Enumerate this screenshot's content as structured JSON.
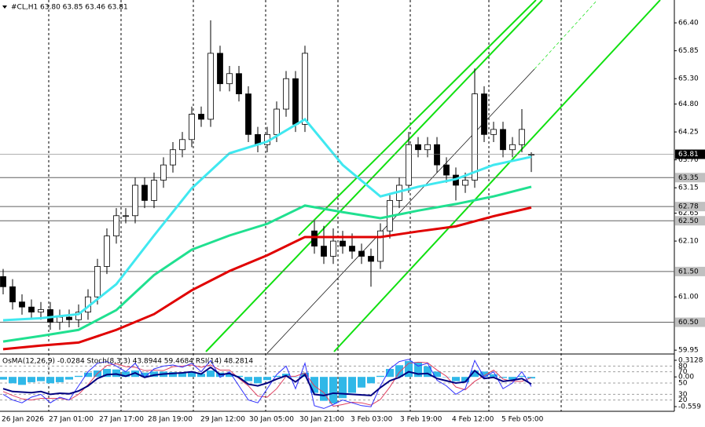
{
  "chart_data": [
    {
      "type": "candlestick",
      "title": "#CL,H1  63.80 63.85 63.46 63.81",
      "ylim": [
        59.89,
        66.85
      ],
      "yticks": [
        {
          "value": 66.4,
          "label": "66.40"
        },
        65.85,
        {
          "value": 65.3,
          "label": "65.30"
        },
        {
          "value": 64.8,
          "label": "64.80"
        },
        64.25,
        {
          "value": 63.7,
          "label": "63.70"
        },
        63.15,
        62.65,
        {
          "value": 62.1,
          "label": "62.10"
        },
        {
          "value": 61.0,
          "label": "61.00"
        },
        59.95
      ],
      "levels": [
        63.35,
        62.78,
        {
          "value": 62.5,
          "label": "62.50"
        },
        {
          "value": 61.5,
          "label": "61.50"
        },
        {
          "value": 60.5,
          "label": "60.50"
        }
      ],
      "last": 63.81,
      "x_labels": [
        "26 Jan 2026",
        "27 Jan 01:00",
        "27 Jan 17:00",
        "28 Jan 19:00",
        "29 Jan 12:00",
        "30 Jan 05:00",
        "30 Jan 21:00",
        "3 Feb 03:00",
        "3 Feb 19:00",
        "4 Feb 12:00",
        "5 Feb 05:00"
      ],
      "candles": [
        [
          61.4,
          61.55,
          61.05,
          61.2
        ],
        [
          61.2,
          61.35,
          60.75,
          60.9
        ],
        [
          60.9,
          61.05,
          60.65,
          60.8
        ],
        [
          60.8,
          60.95,
          60.55,
          60.7
        ],
        [
          60.7,
          60.9,
          60.55,
          60.75
        ],
        [
          60.75,
          60.9,
          60.35,
          60.5
        ],
        [
          60.5,
          60.75,
          60.35,
          60.6
        ],
        [
          60.6,
          60.75,
          60.4,
          60.55
        ],
        [
          60.55,
          60.85,
          60.4,
          60.7
        ],
        [
          60.7,
          61.15,
          60.55,
          61.0
        ],
        [
          61.0,
          61.75,
          60.85,
          61.6
        ],
        [
          61.6,
          62.35,
          61.45,
          62.2
        ],
        [
          62.2,
          62.75,
          62.05,
          62.6
        ],
        [
          62.6,
          62.75,
          62.45,
          62.6
        ],
        [
          62.6,
          63.35,
          62.45,
          63.2
        ],
        [
          63.2,
          63.35,
          62.75,
          62.9
        ],
        [
          62.9,
          63.45,
          62.75,
          63.3
        ],
        [
          63.3,
          63.75,
          63.15,
          63.6
        ],
        [
          63.6,
          64.05,
          63.45,
          63.9
        ],
        [
          63.9,
          64.25,
          63.75,
          64.1
        ],
        [
          64.1,
          64.75,
          63.95,
          64.6
        ],
        [
          64.6,
          64.75,
          64.35,
          64.5
        ],
        [
          64.5,
          66.45,
          64.35,
          65.8
        ],
        [
          65.8,
          65.95,
          65.05,
          65.2
        ],
        [
          65.2,
          65.55,
          65.05,
          65.4
        ],
        [
          65.4,
          65.55,
          64.85,
          65.0
        ],
        [
          65.0,
          65.15,
          64.05,
          64.2
        ],
        [
          64.2,
          64.35,
          63.85,
          64.0
        ],
        [
          64.0,
          64.35,
          63.85,
          64.2
        ],
        [
          64.2,
          64.85,
          64.05,
          64.7
        ],
        [
          64.7,
          65.45,
          64.55,
          65.3
        ],
        [
          65.3,
          65.45,
          64.25,
          64.4
        ],
        [
          64.4,
          65.95,
          64.25,
          65.8
        ],
        [
          62.3,
          62.5,
          61.85,
          62.0
        ],
        [
          62.0,
          62.4,
          61.65,
          61.8
        ],
        [
          61.8,
          62.35,
          61.65,
          62.1
        ],
        [
          62.1,
          62.3,
          61.85,
          62.0
        ],
        [
          62.0,
          62.25,
          61.75,
          61.9
        ],
        [
          61.9,
          62.05,
          61.65,
          61.8
        ],
        [
          61.8,
          61.95,
          61.2,
          61.7
        ],
        [
          61.7,
          62.45,
          61.55,
          62.3
        ],
        [
          62.3,
          63.05,
          62.15,
          62.9
        ],
        [
          62.9,
          63.35,
          62.75,
          63.2
        ],
        [
          63.2,
          64.25,
          63.05,
          64.0
        ],
        [
          64.0,
          64.15,
          63.75,
          63.9
        ],
        [
          63.9,
          64.15,
          63.75,
          64.0
        ],
        [
          64.0,
          64.15,
          63.45,
          63.6
        ],
        [
          63.6,
          63.75,
          63.25,
          63.4
        ],
        [
          63.4,
          63.55,
          62.9,
          63.2
        ],
        [
          63.2,
          63.45,
          63.05,
          63.3
        ],
        [
          63.3,
          65.5,
          63.15,
          65.0
        ],
        [
          65.0,
          65.15,
          64.05,
          64.2
        ],
        [
          64.2,
          64.45,
          64.05,
          64.3
        ],
        [
          64.3,
          64.45,
          63.75,
          63.9
        ],
        [
          63.9,
          64.15,
          63.75,
          64.0
        ],
        [
          64.0,
          64.7,
          63.85,
          64.3
        ],
        [
          63.8,
          63.85,
          63.46,
          63.81
        ]
      ],
      "series": [
        {
          "color": "#40e8f0",
          "x": [
            0,
            4,
            8,
            12,
            16,
            20,
            24,
            28,
            32,
            36,
            40,
            44,
            48,
            52,
            56
          ],
          "values": [
            60.54,
            60.58,
            60.66,
            61.25,
            62.21,
            63.14,
            63.83,
            64.06,
            64.5,
            63.6,
            62.98,
            63.17,
            63.32,
            63.6,
            63.76
          ]
        },
        {
          "color": "#20e090",
          "x": [
            0,
            4,
            8,
            12,
            16,
            20,
            24,
            28,
            32,
            36,
            40,
            44,
            48,
            52,
            56
          ],
          "values": [
            60.12,
            60.23,
            60.35,
            60.74,
            61.43,
            61.93,
            62.21,
            62.44,
            62.8,
            62.67,
            62.55,
            62.7,
            62.83,
            62.98,
            63.17
          ]
        },
        {
          "color": "#e00000",
          "x": [
            0,
            4,
            8,
            12,
            16,
            20,
            24,
            28,
            32,
            36,
            40,
            44,
            48,
            52,
            56
          ],
          "values": [
            59.97,
            60.04,
            60.1,
            60.35,
            60.66,
            61.13,
            61.51,
            61.82,
            62.18,
            62.18,
            62.18,
            62.29,
            62.39,
            62.59,
            62.76
          ]
        }
      ]
    },
    {
      "type": "oscillator",
      "title": "OsMA(12,26,9) -0.0284  Stoch(8,3,3) 43.8944 59.4684  RSI(14) 48.2814",
      "ylim": [
        -0.647,
        0.416
      ],
      "yticks": [
        0.3128,
        {
          "value": 0,
          "label": "0.00"
        },
        -0.559
      ],
      "y2lim": [
        0,
        100
      ],
      "y2ticks": [
        80,
        70,
        50,
        30,
        20
      ],
      "osma": {
        "color": "#30b8e8",
        "values": [
          -0.05,
          -0.12,
          -0.15,
          -0.1,
          -0.08,
          -0.12,
          -0.1,
          -0.05,
          0.02,
          0.08,
          0.12,
          0.15,
          0.14,
          0.1,
          0.12,
          0.08,
          0.1,
          0.1,
          0.09,
          0.08,
          0.1,
          0.06,
          0.12,
          0.08,
          0.05,
          0.02,
          -0.08,
          -0.12,
          -0.06,
          0.02,
          0.06,
          0.0,
          0.08,
          -0.3,
          -0.45,
          -0.5,
          -0.4,
          -0.3,
          -0.2,
          -0.12,
          0.02,
          0.15,
          0.22,
          0.3,
          0.28,
          0.2,
          0.1,
          0.0,
          -0.08,
          -0.1,
          0.12,
          0.1,
          0.05,
          -0.02,
          -0.05,
          0.02,
          -0.0284
        ]
      },
      "series": [
        {
          "color": "#e04060",
          "width": 1,
          "axis": "y2",
          "values": [
            35,
            28,
            22,
            20,
            23,
            23,
            23,
            20,
            30,
            47,
            67,
            81,
            84,
            79,
            78,
            72,
            73,
            72,
            79,
            80,
            82,
            78,
            82,
            73,
            73,
            58,
            45,
            27,
            25,
            40,
            62,
            62,
            68,
            45,
            33,
            9,
            12,
            16,
            15,
            11,
            21,
            43,
            69,
            85,
            87,
            86,
            73,
            62,
            43,
            38,
            53,
            63,
            73,
            57,
            53,
            53,
            59.4684
          ]
        },
        {
          "color": "#3030ff",
          "width": 1,
          "axis": "y2",
          "values": [
            30,
            20,
            15,
            25,
            30,
            15,
            25,
            20,
            45,
            70,
            85,
            88,
            80,
            70,
            85,
            60,
            75,
            80,
            82,
            78,
            85,
            70,
            90,
            60,
            70,
            45,
            20,
            15,
            40,
            65,
            80,
            40,
            85,
            10,
            5,
            12,
            20,
            15,
            10,
            8,
            45,
            75,
            88,
            92,
            80,
            85,
            55,
            45,
            30,
            40,
            90,
            60,
            70,
            40,
            50,
            70,
            43.8944
          ]
        },
        {
          "color": "#000080",
          "width": 2,
          "axis": "y2",
          "values": [
            40,
            35,
            34,
            33,
            35,
            30,
            32,
            31,
            36,
            45,
            58,
            65,
            66,
            62,
            68,
            60,
            64,
            66,
            67,
            68,
            70,
            66,
            78,
            65,
            67,
            60,
            48,
            45,
            50,
            57,
            63,
            52,
            65,
            30,
            28,
            32,
            31,
            30,
            29,
            28,
            42,
            54,
            60,
            70,
            66,
            67,
            58,
            54,
            50,
            52,
            72,
            58,
            60,
            53,
            55,
            58,
            48.2814
          ]
        }
      ]
    }
  ]
}
